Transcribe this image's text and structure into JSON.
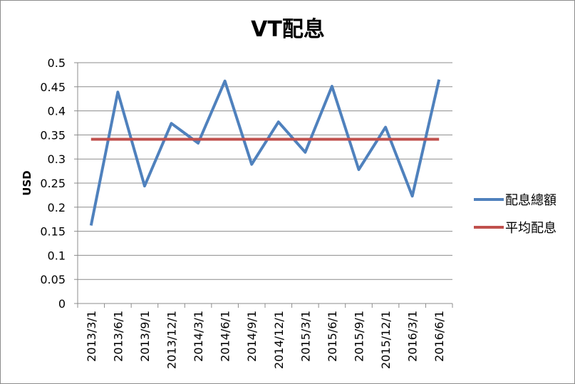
{
  "chart_data": {
    "type": "line",
    "title": "VT配息",
    "xlabel": "",
    "ylabel": "USD",
    "ylim": [
      0,
      0.5
    ],
    "yticks": [
      "0",
      "0.05",
      "0.1",
      "0.15",
      "0.2",
      "0.25",
      "0.3",
      "0.35",
      "0.4",
      "0.45",
      "0.5"
    ],
    "grid": true,
    "legend_position": "right",
    "categories": [
      "2013/3/1",
      "2013/6/1",
      "2013/9/1",
      "2013/12/1",
      "2014/3/1",
      "2014/6/1",
      "2014/9/1",
      "2014/12/1",
      "2015/3/1",
      "2015/6/1",
      "2015/9/1",
      "2015/12/1",
      "2016/3/1",
      "2016/6/1"
    ],
    "series": [
      {
        "name": "配息總額",
        "color": "#4f81bd",
        "values": [
          0.162,
          0.439,
          0.244,
          0.374,
          0.333,
          0.462,
          0.289,
          0.377,
          0.314,
          0.451,
          0.278,
          0.366,
          0.223,
          0.465
        ]
      },
      {
        "name": "平均配息",
        "color": "#c0504d",
        "values": [
          0.341,
          0.341,
          0.341,
          0.341,
          0.341,
          0.341,
          0.341,
          0.341,
          0.341,
          0.341,
          0.341,
          0.341,
          0.341,
          0.341
        ]
      }
    ]
  }
}
